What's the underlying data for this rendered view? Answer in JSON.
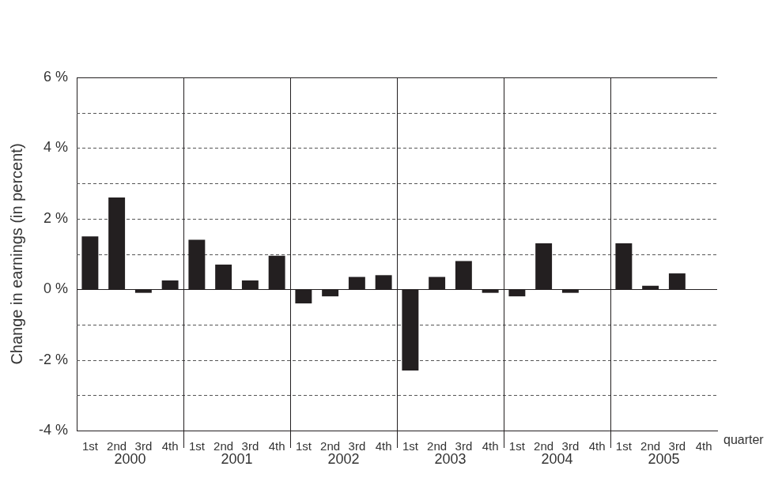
{
  "chart_data": {
    "type": "bar",
    "y_label": "Change in earnings (in percent)",
    "x_label": "quarter",
    "categories": [
      "1st",
      "2nd",
      "3rd",
      "4th",
      "1st",
      "2nd",
      "3rd",
      "4th",
      "1st",
      "2nd",
      "3rd",
      "4th",
      "1st",
      "2nd",
      "3rd",
      "4th",
      "1st",
      "2nd",
      "3rd",
      "4th",
      "1st",
      "2nd",
      "3rd",
      "4th"
    ],
    "x_groups": [
      "2000",
      "2001",
      "2002",
      "2003",
      "2004",
      "2005"
    ],
    "values": [
      1.5,
      2.6,
      -0.1,
      0.25,
      1.4,
      0.7,
      0.25,
      0.95,
      -0.4,
      -0.2,
      0.35,
      0.4,
      -2.3,
      0.35,
      0.8,
      -0.1,
      -0.2,
      1.3,
      -0.1,
      null,
      1.3,
      0.1,
      0.45,
      null
    ],
    "color": "#231f20",
    "ylim": [
      -4,
      6
    ],
    "yticks": [
      {
        "value": -4,
        "label": "-4 %"
      },
      {
        "value": -2,
        "label": "-2 %"
      },
      {
        "value": 0,
        "label": "0 %"
      },
      {
        "value": 2,
        "label": "2 %"
      },
      {
        "value": 4,
        "label": "4 %"
      },
      {
        "value": 6,
        "label": "6 %"
      }
    ],
    "grid": true
  }
}
